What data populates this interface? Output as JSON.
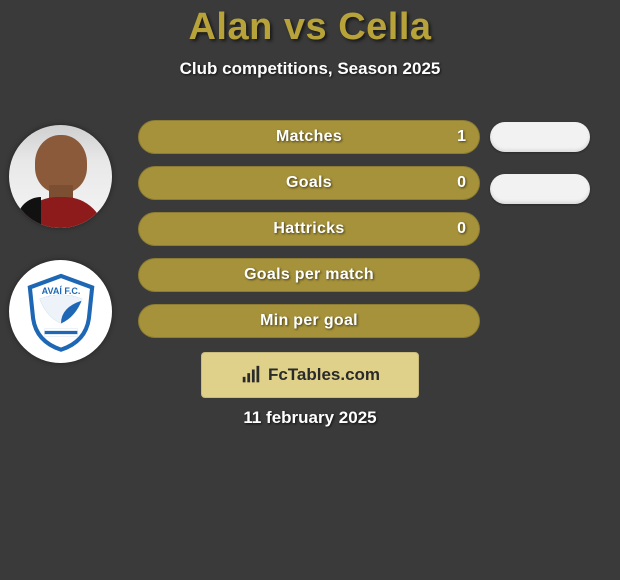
{
  "background_color": "#3a3a3a",
  "title": {
    "text": "Alan vs Cella",
    "color": "#b7a33a",
    "fontsize": 38
  },
  "subtitle": "Club competitions, Season 2025",
  "stat_bar": {
    "fill": "#a6923a",
    "label_color": "#ffffff",
    "value_color": "#ffffff",
    "radius": 17,
    "height": 34
  },
  "stats": [
    {
      "label": "Matches",
      "value": "1"
    },
    {
      "label": "Goals",
      "value": "0"
    },
    {
      "label": "Hattricks",
      "value": "0"
    },
    {
      "label": "Goals per match",
      "value": ""
    },
    {
      "label": "Min per goal",
      "value": ""
    }
  ],
  "right_pills": {
    "count": 2,
    "color": "#f2f2f2"
  },
  "player1": {
    "name": "Alan",
    "has_photo": true
  },
  "player2": {
    "name": "Cella",
    "club": "Avaí FC",
    "badge_primary": "#1e67b5",
    "badge_bg": "#ffffff"
  },
  "watermark": {
    "text": "FcTables.com",
    "bg": "#dfd18a",
    "icon_color": "#2a2a2a"
  },
  "date": "11 february 2025"
}
